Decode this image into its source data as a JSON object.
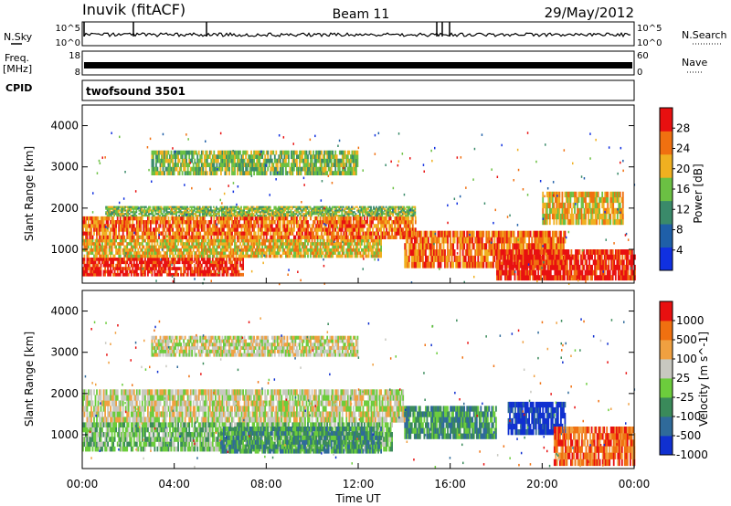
{
  "header": {
    "station": "Inuvik (fitACF)",
    "beam": "Beam 11",
    "date": "29/May/2012"
  },
  "left_labels": {
    "nsky": "N.Sky",
    "freq": "Freq.",
    "freq_unit": "[MHz]",
    "cpid": "CPID"
  },
  "right_labels": {
    "nsearch": "N.Search",
    "nave": "Nave"
  },
  "strip_ticks": {
    "nsky_left_top": "10^5",
    "nsky_left_bottom": "10^0",
    "nsky_right_top": "10^5",
    "nsky_right_bottom": "10^0",
    "freq_left_top": "18",
    "freq_left_bottom": "8",
    "nave_right_top": "60",
    "nave_right_bottom": "0"
  },
  "cpid_text": "twofsound 3501",
  "chart_data": [
    {
      "type": "heatmap",
      "panel": "power",
      "xlabel": "Time UT",
      "ylabel": "Slant Range [km]",
      "x_range_hours": [
        0,
        24
      ],
      "ylim": [
        180,
        4500
      ],
      "yticks": [
        "1000",
        "2000",
        "3000",
        "4000"
      ],
      "colorbar_label": "Power [dB]",
      "colorbar_ticks": [
        "4",
        "8",
        "12",
        "16",
        "20",
        "24",
        "28"
      ],
      "colorbar_range": [
        0,
        32
      ],
      "colors": [
        "#1030e0",
        "#1f5fa8",
        "#3a8a6a",
        "#6bc043",
        "#f0b020",
        "#f07010",
        "#e81010"
      ],
      "bands": [
        {
          "t": [
            0,
            7
          ],
          "r": [
            350,
            800
          ],
          "level": 6
        },
        {
          "t": [
            0,
            13
          ],
          "r": [
            800,
            1250
          ],
          "level": 4
        },
        {
          "t": [
            0,
            14.5
          ],
          "r": [
            1250,
            1800
          ],
          "level": 5
        },
        {
          "t": [
            1,
            14.5
          ],
          "r": [
            1800,
            2050
          ],
          "level": 3
        },
        {
          "t": [
            14,
            21
          ],
          "r": [
            550,
            1450
          ],
          "level": 5
        },
        {
          "t": [
            18,
            24
          ],
          "r": [
            250,
            1000
          ],
          "level": 6
        },
        {
          "t": [
            3,
            12
          ],
          "r": [
            2800,
            3400
          ],
          "level": 3
        },
        {
          "t": [
            20,
            23.5
          ],
          "r": [
            1600,
            2400
          ],
          "level": 4
        }
      ]
    },
    {
      "type": "heatmap",
      "panel": "velocity",
      "xlabel": "Time UT",
      "ylabel": "Slant Range [km]",
      "x_range_hours": [
        0,
        24
      ],
      "ylim": [
        180,
        4500
      ],
      "yticks": [
        "1000",
        "2000",
        "3000",
        "4000"
      ],
      "xticks": [
        "00:00",
        "04:00",
        "08:00",
        "12:00",
        "16:00",
        "20:00",
        "00:00"
      ],
      "colorbar_label": "Velocity [m s^-1]",
      "colorbar_ticks": [
        "1000",
        "500",
        "100",
        "25",
        "-25",
        "-100",
        "-500",
        "-1000"
      ],
      "colors": [
        "#1030d0",
        "#2f6a9a",
        "#3a8a5a",
        "#6ccc3c",
        "#c8c8c0",
        "#f0a040",
        "#f07010",
        "#e81010"
      ],
      "bands": [
        {
          "t": [
            0,
            14
          ],
          "r": [
            1300,
            2100
          ],
          "level": 4
        },
        {
          "t": [
            0,
            13.5
          ],
          "r": [
            600,
            1300
          ],
          "level": 3
        },
        {
          "t": [
            6,
            13
          ],
          "r": [
            550,
            1200
          ],
          "level": 2
        },
        {
          "t": [
            14,
            18
          ],
          "r": [
            900,
            1700
          ],
          "level": 2
        },
        {
          "t": [
            18.5,
            21
          ],
          "r": [
            1000,
            1800
          ],
          "level": 0
        },
        {
          "t": [
            20.5,
            24
          ],
          "r": [
            250,
            1200
          ],
          "level": 6
        },
        {
          "t": [
            3,
            12
          ],
          "r": [
            2900,
            3400
          ],
          "level": 4
        }
      ]
    }
  ]
}
